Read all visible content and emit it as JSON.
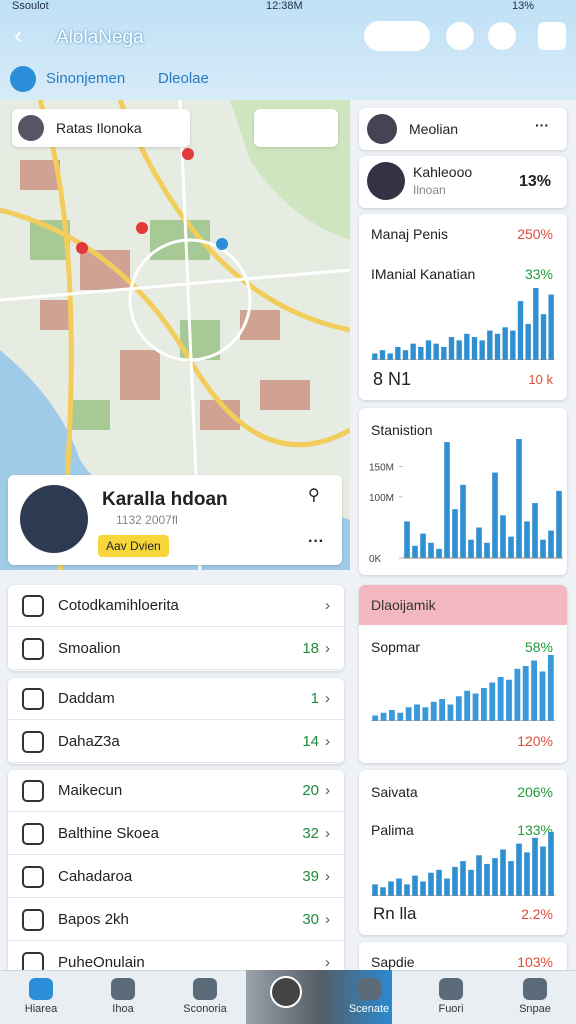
{
  "status_bar": {
    "carrier": "Ssoulot",
    "time": "12:38M",
    "battery": "13%"
  },
  "header": {
    "title": "AlolaNega"
  },
  "tabs": [
    "Sinonjemen",
    "Dleolae"
  ],
  "map": {
    "search": "Ratas Ilonoka"
  },
  "profile": {
    "name": "Karalla hdoan",
    "subtitle": "1132 2007fl",
    "button": "Aav Dvien"
  },
  "list_groups": [
    [
      {
        "label": "Cotodkamihloerita"
      },
      {
        "label": "Smoalion",
        "value": 18
      }
    ],
    [
      {
        "label": "Daddam",
        "value": 1
      },
      {
        "label": "DahaZ3a",
        "value": 14
      }
    ],
    [
      {
        "label": "Maikecun",
        "value": 20
      },
      {
        "label": "Balthine Skoea",
        "value": 32
      },
      {
        "label": "Cahadaroa",
        "value": 39
      },
      {
        "label": "Bapos 2kh",
        "value": 30
      },
      {
        "label": "PuheOnulain"
      }
    ]
  ],
  "side": {
    "user": {
      "name": "Meolian"
    },
    "stat": {
      "title": "Kahleooo",
      "subtitle": "Ilnoan",
      "value": "13%"
    },
    "chart1": {
      "title": "Manaj Penis",
      "title_value": "250%",
      "subtitle": "IManial Kanatian",
      "subtitle_value": "33%",
      "footer_left": "8 N1",
      "footer_right": "10 k",
      "color": "#2f8fd0",
      "values": [
        2,
        3,
        2,
        4,
        3,
        5,
        4,
        6,
        5,
        4,
        7,
        6,
        8,
        7,
        6,
        9,
        8,
        10,
        9,
        18,
        11,
        22,
        14,
        20
      ]
    },
    "chart2": {
      "title": "Stanistion",
      "color": "#2f8fd0",
      "ylim": [
        0,
        200
      ],
      "yticks": [
        {
          "value": 0,
          "label": "0K"
        },
        {
          "value": 100,
          "label": "100M"
        },
        {
          "value": 150,
          "label": "150M"
        }
      ],
      "values": [
        60,
        20,
        40,
        25,
        15,
        190,
        80,
        120,
        30,
        50,
        25,
        140,
        70,
        35,
        195,
        60,
        90,
        30,
        45,
        110
      ]
    },
    "chart3": {
      "header": "Dlaoijamik",
      "title": "Sopmar",
      "title_value": "58%",
      "footer_right": "120%",
      "color": "#3a9ad9",
      "values": [
        2,
        3,
        4,
        3,
        5,
        6,
        5,
        7,
        8,
        6,
        9,
        11,
        10,
        12,
        14,
        16,
        15,
        19,
        20,
        22,
        18,
        24
      ]
    },
    "chart4": {
      "title": "Saivata",
      "title_value": "206%",
      "subtitle": "Palima",
      "subtitle_value": "133%",
      "footer_left": "Rn lla",
      "footer_right": "2.2%",
      "color": "#2f8fd0",
      "values": [
        4,
        3,
        5,
        6,
        4,
        7,
        5,
        8,
        9,
        6,
        10,
        12,
        9,
        14,
        11,
        13,
        16,
        12,
        18,
        15,
        20,
        17,
        22
      ]
    },
    "last": {
      "title": "Sapdie",
      "value": "103%"
    }
  },
  "bottom_nav": [
    {
      "label": "Hiarea"
    },
    {
      "label": "Ihoa"
    },
    {
      "label": "Sconoria"
    },
    {
      "label": "Scenate"
    },
    {
      "label": "Fuori"
    },
    {
      "label": "Snpae"
    }
  ]
}
